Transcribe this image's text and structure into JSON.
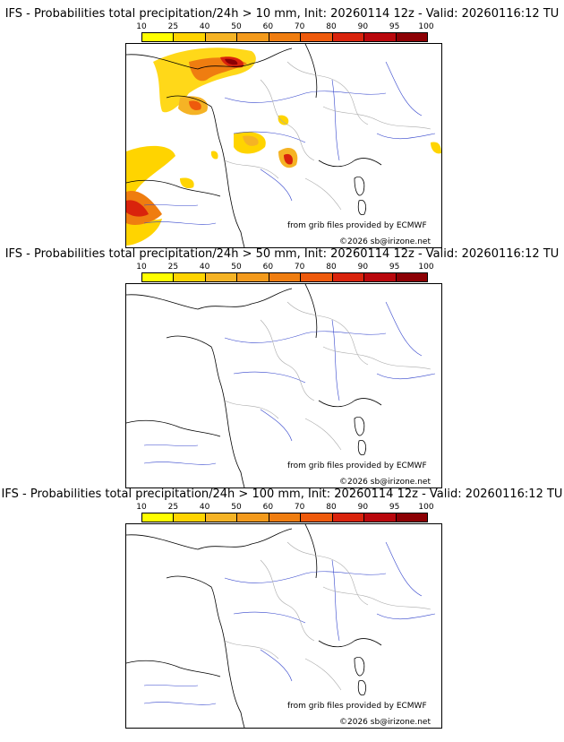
{
  "colorbar": {
    "ticks": [
      "10",
      "25",
      "40",
      "50",
      "60",
      "70",
      "80",
      "90",
      "95",
      "100"
    ],
    "colors": [
      "#ffff00",
      "#ffd400",
      "#f5b325",
      "#f39a1c",
      "#ef7d10",
      "#ee5a0c",
      "#d9230c",
      "#b9070c",
      "#8c0004"
    ]
  },
  "panels": [
    {
      "title": "IFS - Probabilities total precipitation/24h > 10 mm, Init: 20260114 12z - Valid: 20260116:12 TU",
      "source": "from grib files provided by ECMWF",
      "copyright": "©2026 sb@irizone.net"
    },
    {
      "title": "IFS - Probabilities total precipitation/24h > 50 mm, Init: 20260114 12z - Valid: 20260116:12 TU",
      "source": "from grib files provided by ECMWF",
      "copyright": "©2026 sb@irizone.net"
    },
    {
      "title": "IFS - Probabilities total precipitation/24h > 100 mm, Init: 20260114 12z - Valid: 20260116:12 TU",
      "source": "from grib files provided by ECMWF",
      "copyright": "©2026 sb@irizone.net"
    }
  ]
}
